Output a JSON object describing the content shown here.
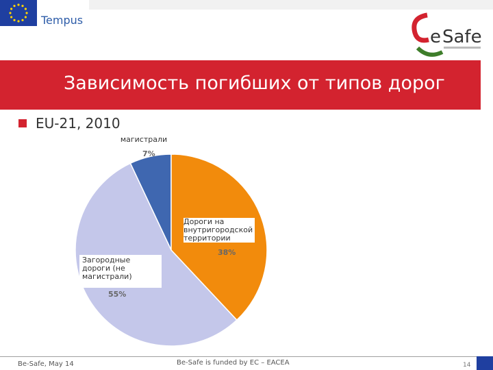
{
  "header": {
    "tempus_label": "Tempus",
    "title": "Зависимость погибших от типов дорог",
    "subtitle": "EU-21, 2010"
  },
  "chart_data": {
    "type": "pie",
    "categories": [
      "магистрали",
      "Дороги на внутригородской территории",
      "Загородные дороги (не магистрали)"
    ],
    "values": [
      7,
      38,
      55
    ],
    "value_labels": [
      "7%",
      "38%",
      "55%"
    ],
    "colors": [
      "#3f67b0",
      "#f28b0c",
      "#c4c7ea"
    ]
  },
  "footer": {
    "left": "Be-Safe, May 14",
    "middle": "Be-Safe is funded by EC – EACEA",
    "page": "14"
  }
}
